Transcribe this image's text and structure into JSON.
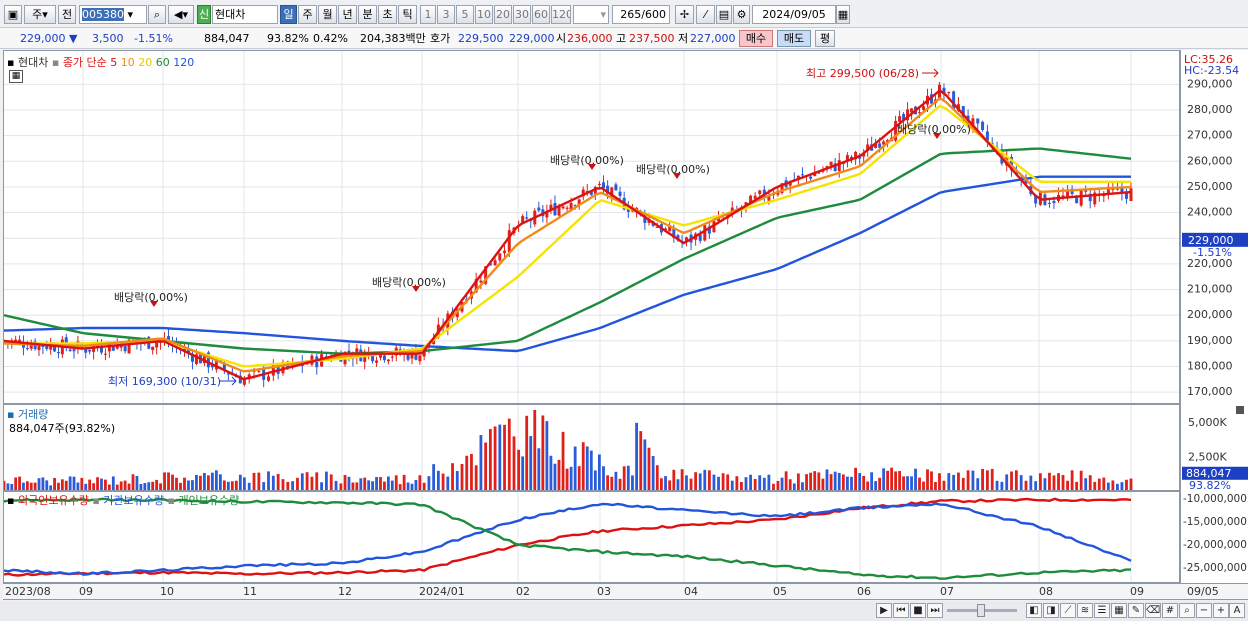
{
  "toolbar": {
    "type_label": "주",
    "prev_label": "전",
    "code": "005380",
    "market_badge": "신",
    "stock_name": "현대차",
    "periods": [
      "일",
      "주",
      "월",
      "년",
      "분",
      "초",
      "틱"
    ],
    "active_period": "일",
    "intervals": [
      "1",
      "3",
      "5",
      "10",
      "20",
      "30",
      "60",
      "120"
    ],
    "count": "265",
    "count_total": "/600",
    "date": "2024/09/05"
  },
  "quote": {
    "price": "229,000",
    "change": "3,500",
    "change_pct": "-1.51%",
    "volume": "884,047",
    "ratio1": "93.82%",
    "ratio2": "0.42%",
    "amount": "204,383백만",
    "hoga_label": "호가",
    "hoga_sell": "229,500",
    "hoga_buy": "229,000",
    "open_label": "시",
    "open": "236,000",
    "high_label": "고",
    "high": "237,500",
    "low_label": "저",
    "low": "227,000",
    "buy_button": "매수",
    "sell_button": "매도",
    "eval_button": "평"
  },
  "price_panel": {
    "name": "현대차",
    "indicator": "종가 단순",
    "ma": [
      "5",
      "10",
      "20",
      "60",
      "120"
    ],
    "ma_colors": [
      "#dd1111",
      "#f08b1a",
      "#f5e400",
      "#1f8b3c",
      "#2255dd"
    ],
    "lc": "LC:35.26",
    "hc": "HC:-23.54",
    "current_price": "229,000",
    "current_pct": "-1.51%",
    "annotations": {
      "high": "최고 299,500 (06/28)",
      "low": "최저 169,300 (10/31)",
      "dividend": "배당락(0.00%)"
    }
  },
  "volume_panel": {
    "name": "거래량",
    "value": "884,047주(93.82%)",
    "current": "884,047",
    "current_pct": "93.82%"
  },
  "holding_panel": {
    "series": [
      "외국인보유수량",
      "기관보유수량",
      "개인보유수량"
    ],
    "colors": [
      "#dd1111",
      "#2255dd",
      "#1f8b3c"
    ]
  },
  "x_axis": [
    "2023/08",
    "09",
    "10",
    "11",
    "12",
    "2024/01",
    "02",
    "03",
    "04",
    "05",
    "06",
    "07",
    "08",
    "09",
    "09/05"
  ],
  "chart_data": [
    {
      "type": "line",
      "title": "현대차 종가 단순 5 10 20 60 120",
      "x": [
        "2023/08",
        "09",
        "10",
        "11",
        "12",
        "2024/01",
        "02",
        "03",
        "04",
        "05",
        "06",
        "07",
        "08",
        "09"
      ],
      "ylim": [
        165000,
        303000
      ],
      "yticks": [
        "170,000",
        "180,000",
        "190,000",
        "200,000",
        "210,000",
        "220,000",
        "230,000",
        "240,000",
        "250,000",
        "260,000",
        "270,000",
        "280,000",
        "290,000"
      ],
      "series": [
        {
          "name": "5",
          "values": [
            190000,
            187000,
            190000,
            175000,
            185000,
            185000,
            235000,
            250000,
            228000,
            250000,
            262000,
            288000,
            245000,
            248000
          ]
        },
        {
          "name": "10",
          "values": [
            189000,
            188000,
            191000,
            178000,
            184000,
            186000,
            228000,
            248000,
            232000,
            248000,
            258000,
            285000,
            248000,
            250000
          ]
        },
        {
          "name": "20",
          "values": [
            189000,
            189000,
            190000,
            180000,
            183000,
            187000,
            215000,
            245000,
            235000,
            245000,
            255000,
            282000,
            252000,
            252000
          ]
        },
        {
          "name": "60",
          "values": [
            200000,
            193000,
            190000,
            187000,
            185000,
            186000,
            190000,
            205000,
            222000,
            238000,
            245000,
            263000,
            265000,
            261000
          ]
        },
        {
          "name": "120",
          "values": [
            194000,
            195000,
            195000,
            193000,
            190000,
            188000,
            186000,
            195000,
            208000,
            218000,
            232000,
            248000,
            254000,
            254000
          ]
        }
      ]
    },
    {
      "type": "bar",
      "title": "거래량",
      "ylabels": [
        "5,000K",
        "2,500K"
      ],
      "categories": [
        "2023/08",
        "09",
        "10",
        "11",
        "12",
        "2024/01",
        "02",
        "03",
        "04",
        "05",
        "06",
        "07",
        "08",
        "09"
      ],
      "values": [
        850,
        780,
        1050,
        1150,
        1000,
        950,
        4800,
        1900,
        1150,
        1050,
        1300,
        1100,
        1250,
        884
      ]
    },
    {
      "type": "line",
      "title": "보유수량",
      "ylabels": [
        "-10,000,000",
        "-15,000,000",
        "-20,000,000",
        "-25,000,000"
      ],
      "x": [
        "2023/08",
        "09",
        "10",
        "11",
        "12",
        "2024/01",
        "02",
        "03",
        "04",
        "05",
        "06",
        "07",
        "08",
        "09"
      ],
      "series": [
        {
          "name": "외국인보유수량",
          "values": [
            -26500000,
            -26200000,
            -26000000,
            -26300000,
            -26000000,
            -25500000,
            -20000000,
            -17000000,
            -15800000,
            -14500000,
            -12000000,
            -10500000,
            -10200000,
            -10200000
          ]
        },
        {
          "name": "기관보유수량",
          "values": [
            -25500000,
            -26300000,
            -25500000,
            -24500000,
            -24000000,
            -21500000,
            -14500000,
            -11000000,
            -12500000,
            -13800000,
            -12000000,
            -11000000,
            -16000000,
            -23500000
          ]
        },
        {
          "name": "개인보유수량",
          "values": [
            -10300000,
            -10200000,
            -10300000,
            -10600000,
            -10800000,
            -11200000,
            -20000000,
            -21500000,
            -22500000,
            -24500000,
            -26500000,
            -27200000,
            -26000000,
            -25500000
          ]
        }
      ]
    }
  ]
}
